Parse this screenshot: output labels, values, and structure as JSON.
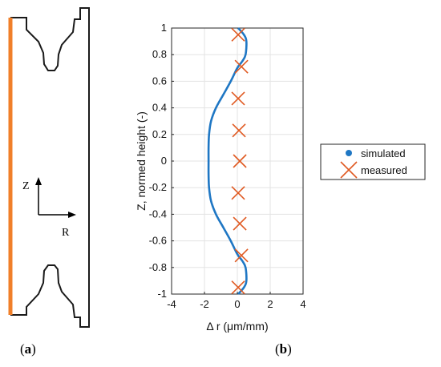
{
  "captions": {
    "a_open": "(",
    "a_letter": "a",
    "a_close": ")",
    "b_open": "(",
    "b_letter": "b",
    "b_close": ")"
  },
  "schematic": {
    "axis_z": "Z",
    "axis_r": "R",
    "colors": {
      "outline": "#1a1a1a",
      "edge": "#f07f2a"
    }
  },
  "chart_data": {
    "type": "line",
    "xlabel": "Δ r (μm/mm)",
    "ylabel": "Z, normed height (-)",
    "xlim": [
      -4,
      4
    ],
    "ylim": [
      -1,
      1
    ],
    "xticks": [
      -4,
      -2,
      0,
      2,
      4
    ],
    "yticks": [
      -1,
      -0.8,
      -0.6,
      -0.4,
      -0.2,
      0,
      0.2,
      0.4,
      0.6,
      0.8,
      1
    ],
    "grid": true,
    "legend": {
      "placement": "outside-right",
      "entries": [
        {
          "label": "simulated",
          "marker": "dot"
        },
        {
          "label": "measured",
          "marker": "cross"
        }
      ]
    },
    "colors": {
      "simulated": "#1f77c4",
      "measured": "#e05a22"
    },
    "series": [
      {
        "name": "simulated",
        "style": "line",
        "x": [
          0.05,
          0.4,
          0.55,
          0.5,
          0.3,
          0.0,
          -0.4,
          -0.85,
          -1.3,
          -1.6,
          -1.72,
          -1.75,
          -1.75,
          -1.75,
          -1.72,
          -1.6,
          -1.3,
          -0.85,
          -0.4,
          0.0,
          0.3,
          0.5,
          0.55,
          0.4,
          0.05
        ],
        "y": [
          1.0,
          0.95,
          0.9,
          0.8,
          0.75,
          0.7,
          0.6,
          0.5,
          0.4,
          0.3,
          0.2,
          0.1,
          0.0,
          -0.1,
          -0.2,
          -0.3,
          -0.4,
          -0.5,
          -0.6,
          -0.7,
          -0.75,
          -0.8,
          -0.9,
          -0.95,
          -1.0
        ]
      },
      {
        "name": "measured",
        "style": "cross",
        "x": [
          0.05,
          0.25,
          0.05,
          0.1,
          0.15,
          0.05,
          0.15,
          0.25,
          0.05
        ],
        "y": [
          0.95,
          0.71,
          0.47,
          0.23,
          0.0,
          -0.24,
          -0.47,
          -0.71,
          -0.95
        ]
      }
    ]
  }
}
